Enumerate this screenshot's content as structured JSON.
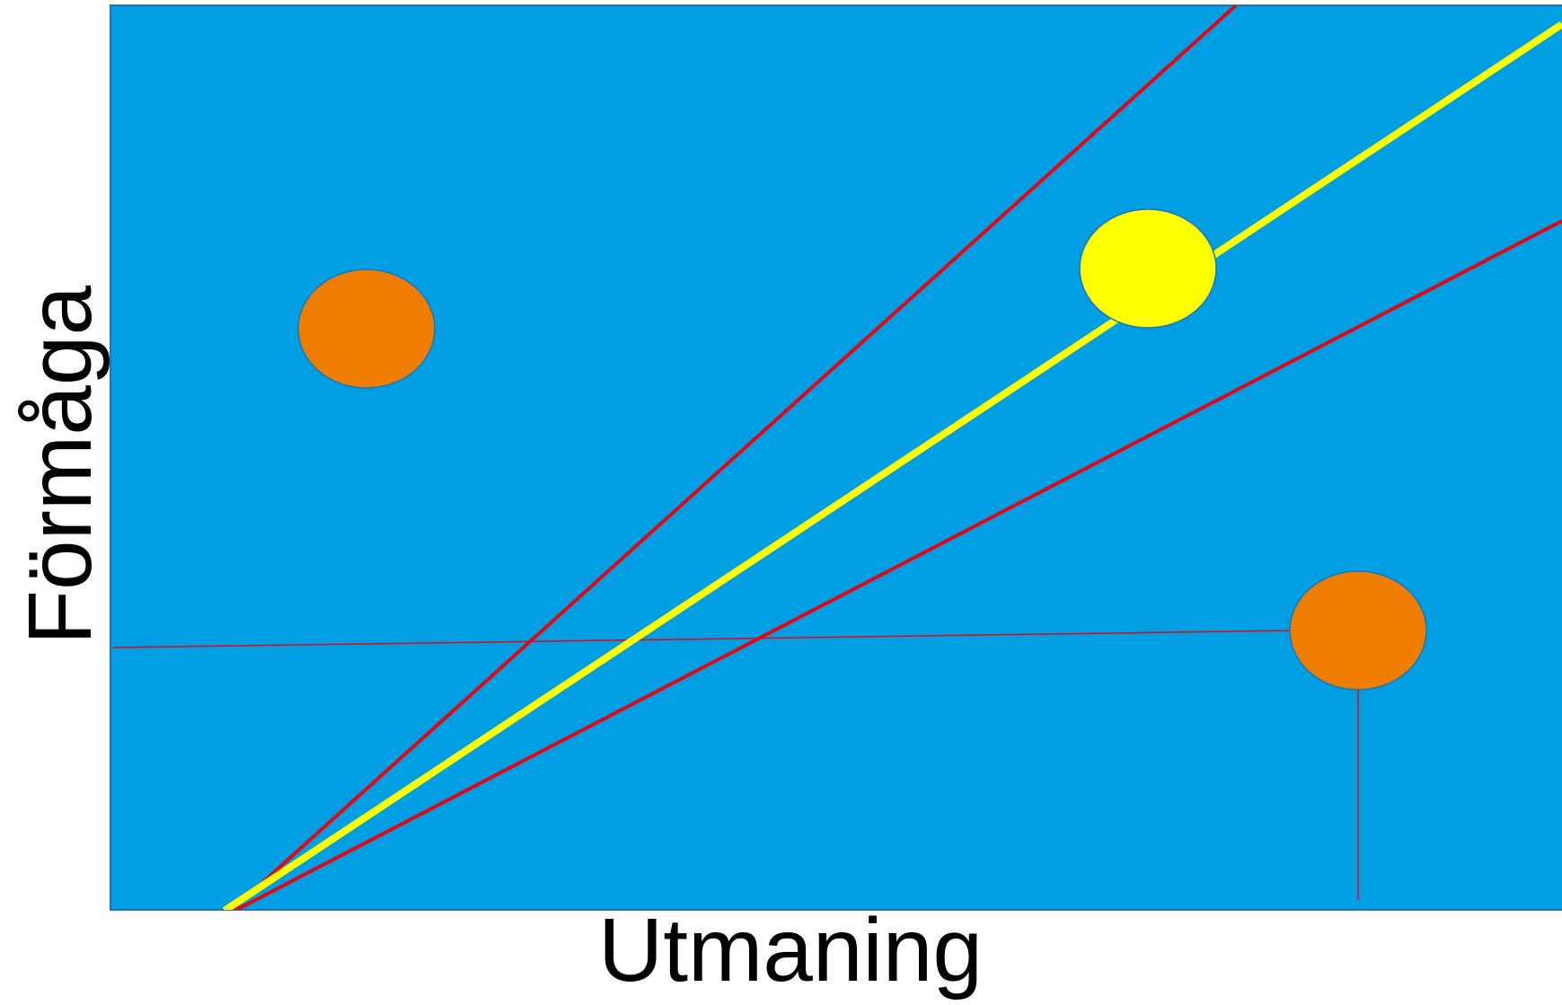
{
  "labels": {
    "x_axis": "Utmaning",
    "y_axis": "Förmåga"
  },
  "colors": {
    "background": "#009fe3",
    "panel_border": "#1b75bc",
    "zone_boundary": "#e30613",
    "balance_line": "#ffff00",
    "balanced_state": "#ffff00",
    "unbalanced_state": "#ef7d00",
    "marker_border": "#1b75bc"
  },
  "diagram": {
    "lines": [
      {
        "name": "upper-boundary-line",
        "role": "zone_boundary"
      },
      {
        "name": "balance-line",
        "role": "balance_line"
      },
      {
        "name": "lower-boundary-line",
        "role": "zone_boundary"
      }
    ],
    "markers": [
      {
        "name": "high-ability-low-challenge-marker",
        "role": "unbalanced_state"
      },
      {
        "name": "balanced-marker",
        "role": "balanced_state"
      },
      {
        "name": "high-challenge-low-ability-marker",
        "role": "unbalanced_state"
      }
    ]
  }
}
